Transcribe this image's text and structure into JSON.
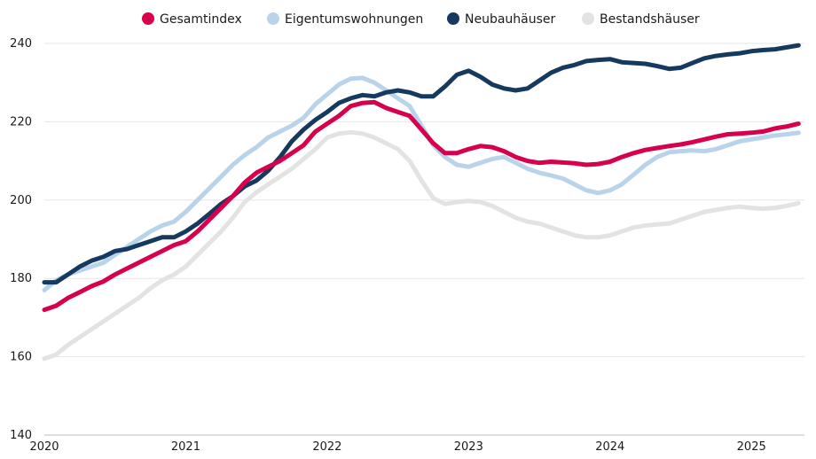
{
  "chart_data": {
    "type": "line",
    "title": "",
    "xlabel": "",
    "ylabel": "",
    "ylim": [
      140,
      240
    ],
    "yticks": [
      140,
      160,
      180,
      200,
      220,
      240
    ],
    "x_tick_labels": [
      "2020",
      "2021",
      "2022",
      "2023",
      "2024",
      "2025"
    ],
    "x_tick_years": [
      2020,
      2021,
      2022,
      2023,
      2024,
      2025
    ],
    "x_range": [
      2020.0,
      2025.375
    ],
    "grid": "horizontal",
    "legend_position": "top",
    "series": [
      {
        "name": "Gesamtindex",
        "color": "#d6004c",
        "x": [
          2020.0,
          2020.083,
          2020.167,
          2020.25,
          2020.333,
          2020.417,
          2020.5,
          2020.583,
          2020.667,
          2020.75,
          2020.833,
          2020.917,
          2021.0,
          2021.083,
          2021.167,
          2021.25,
          2021.333,
          2021.417,
          2021.5,
          2021.583,
          2021.667,
          2021.75,
          2021.833,
          2021.917,
          2022.0,
          2022.083,
          2022.167,
          2022.25,
          2022.333,
          2022.417,
          2022.5,
          2022.583,
          2022.667,
          2022.75,
          2022.833,
          2022.917,
          2023.0,
          2023.083,
          2023.167,
          2023.25,
          2023.333,
          2023.417,
          2023.5,
          2023.583,
          2023.667,
          2023.75,
          2023.833,
          2023.917,
          2024.0,
          2024.083,
          2024.167,
          2024.25,
          2024.333,
          2024.417,
          2024.5,
          2024.583,
          2024.667,
          2024.75,
          2024.833,
          2024.917,
          2025.0,
          2025.083,
          2025.167,
          2025.25,
          2025.333
        ],
        "y": [
          172,
          173,
          175,
          176.5,
          178,
          179.2,
          181,
          182.5,
          184,
          185.5,
          187,
          188.5,
          189.5,
          192,
          195,
          198,
          201,
          204.5,
          207,
          208.5,
          210,
          212,
          214,
          217.5,
          219.5,
          221.5,
          224,
          224.8,
          225,
          223.5,
          222.5,
          221.5,
          218,
          214.5,
          212,
          212,
          213,
          213.8,
          213.5,
          212.5,
          211,
          210,
          209.5,
          209.8,
          209.6,
          209.4,
          209,
          209.2,
          209.8,
          211,
          212,
          212.8,
          213.3,
          213.8,
          214.2,
          214.8,
          215.5,
          216.2,
          216.8,
          217,
          217.2,
          217.5,
          218.3,
          218.8,
          219.5
        ]
      },
      {
        "name": "Eigentumswohnungen",
        "color": "#b8d3ea",
        "x": [
          2020.0,
          2020.083,
          2020.167,
          2020.25,
          2020.333,
          2020.417,
          2020.5,
          2020.583,
          2020.667,
          2020.75,
          2020.833,
          2020.917,
          2021.0,
          2021.083,
          2021.167,
          2021.25,
          2021.333,
          2021.417,
          2021.5,
          2021.583,
          2021.667,
          2021.75,
          2021.833,
          2021.917,
          2022.0,
          2022.083,
          2022.167,
          2022.25,
          2022.333,
          2022.417,
          2022.5,
          2022.583,
          2022.667,
          2022.75,
          2022.833,
          2022.917,
          2023.0,
          2023.083,
          2023.167,
          2023.25,
          2023.333,
          2023.417,
          2023.5,
          2023.583,
          2023.667,
          2023.75,
          2023.833,
          2023.917,
          2024.0,
          2024.083,
          2024.167,
          2024.25,
          2024.333,
          2024.417,
          2024.5,
          2024.583,
          2024.667,
          2024.75,
          2024.833,
          2024.917,
          2025.0,
          2025.083,
          2025.167,
          2025.25,
          2025.333
        ],
        "y": [
          177,
          179.5,
          181,
          182,
          183,
          184,
          186,
          188,
          190,
          192,
          193.5,
          194.5,
          197,
          200,
          203,
          206,
          209,
          211.5,
          213.5,
          216,
          217.5,
          219,
          221,
          224.5,
          227,
          229.5,
          231,
          231.2,
          230,
          228,
          226,
          224,
          219,
          214,
          211,
          209,
          208.5,
          209.5,
          210.5,
          211,
          209.5,
          208,
          207,
          206.3,
          205.5,
          204,
          202.5,
          201.8,
          202.5,
          204,
          206.5,
          209,
          211,
          212.2,
          212.5,
          212.7,
          212.5,
          213,
          214,
          215,
          215.5,
          216,
          216.5,
          216.8,
          217.2
        ]
      },
      {
        "name": "Neubauhäuser",
        "color": "#163a5f",
        "x": [
          2020.0,
          2020.083,
          2020.167,
          2020.25,
          2020.333,
          2020.417,
          2020.5,
          2020.583,
          2020.667,
          2020.75,
          2020.833,
          2020.917,
          2021.0,
          2021.083,
          2021.167,
          2021.25,
          2021.333,
          2021.417,
          2021.5,
          2021.583,
          2021.667,
          2021.75,
          2021.833,
          2021.917,
          2022.0,
          2022.083,
          2022.167,
          2022.25,
          2022.333,
          2022.417,
          2022.5,
          2022.583,
          2022.667,
          2022.75,
          2022.833,
          2022.917,
          2023.0,
          2023.083,
          2023.167,
          2023.25,
          2023.333,
          2023.417,
          2023.5,
          2023.583,
          2023.667,
          2023.75,
          2023.833,
          2023.917,
          2024.0,
          2024.083,
          2024.167,
          2024.25,
          2024.333,
          2024.417,
          2024.5,
          2024.583,
          2024.667,
          2024.75,
          2024.833,
          2024.917,
          2025.0,
          2025.083,
          2025.167,
          2025.25,
          2025.333
        ],
        "y": [
          179,
          179,
          181,
          183,
          184.5,
          185.5,
          187,
          187.5,
          188.5,
          189.5,
          190.5,
          190.5,
          192,
          194,
          196.5,
          199,
          201,
          203.5,
          205,
          207.5,
          211,
          215,
          218,
          220.5,
          222.5,
          224.8,
          226,
          226.8,
          226.5,
          227.5,
          228,
          227.5,
          226.5,
          226.5,
          229,
          232,
          233,
          231.5,
          229.5,
          228.5,
          228,
          228.5,
          230.5,
          232.5,
          233.8,
          234.5,
          235.5,
          235.8,
          236,
          235.2,
          235,
          234.8,
          234.2,
          233.5,
          233.8,
          235,
          236.2,
          236.8,
          237.2,
          237.5,
          238,
          238.3,
          238.5,
          239,
          239.5
        ]
      },
      {
        "name": "Bestandshäuser",
        "color": "#e3e3e3",
        "x": [
          2020.0,
          2020.083,
          2020.167,
          2020.25,
          2020.333,
          2020.417,
          2020.5,
          2020.583,
          2020.667,
          2020.75,
          2020.833,
          2020.917,
          2021.0,
          2021.083,
          2021.167,
          2021.25,
          2021.333,
          2021.417,
          2021.5,
          2021.583,
          2021.667,
          2021.75,
          2021.833,
          2021.917,
          2022.0,
          2022.083,
          2022.167,
          2022.25,
          2022.333,
          2022.417,
          2022.5,
          2022.583,
          2022.667,
          2022.75,
          2022.833,
          2022.917,
          2023.0,
          2023.083,
          2023.167,
          2023.25,
          2023.333,
          2023.417,
          2023.5,
          2023.583,
          2023.667,
          2023.75,
          2023.833,
          2023.917,
          2024.0,
          2024.083,
          2024.167,
          2024.25,
          2024.333,
          2024.417,
          2024.5,
          2024.583,
          2024.667,
          2024.75,
          2024.833,
          2024.917,
          2025.0,
          2025.083,
          2025.167,
          2025.25,
          2025.333
        ],
        "y": [
          159.5,
          160.5,
          163,
          165,
          167,
          169,
          171,
          173,
          175,
          177.5,
          179.5,
          181,
          183,
          186,
          189,
          192,
          195.5,
          199.5,
          202,
          204,
          206,
          208,
          210.5,
          213,
          216,
          217,
          217.3,
          217,
          216,
          214.5,
          213,
          210,
          205,
          200.5,
          199,
          199.5,
          199.8,
          199.5,
          198.5,
          197,
          195.5,
          194.5,
          194,
          193,
          192,
          191,
          190.5,
          190.5,
          191,
          192,
          193,
          193.5,
          193.8,
          194,
          195,
          196,
          197,
          197.5,
          198,
          198.3,
          198,
          197.8,
          198,
          198.5,
          199.2
        ]
      }
    ]
  }
}
